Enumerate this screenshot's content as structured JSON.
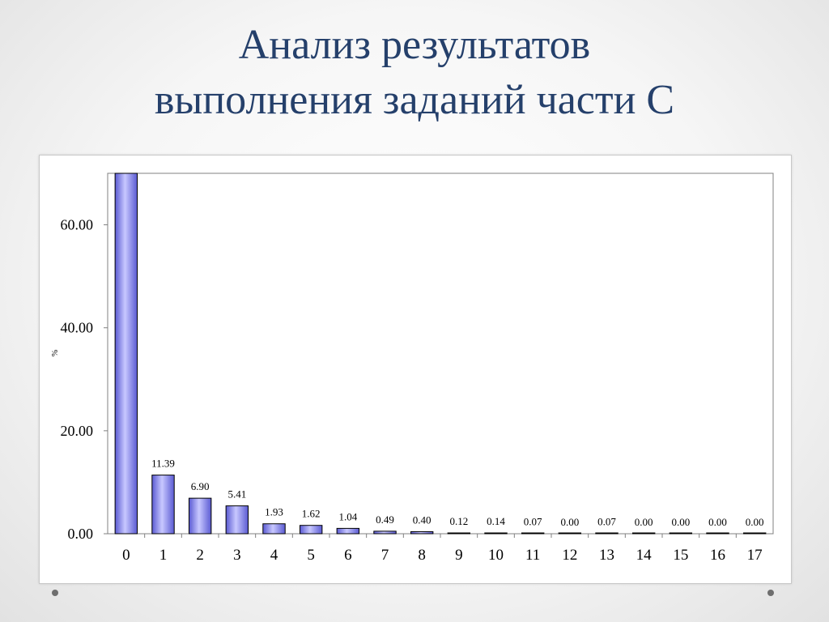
{
  "slide": {
    "title_line1": "Анализ результатов",
    "title_line2": "выполнения заданий части С"
  },
  "chart_data": {
    "type": "bar",
    "ylabel": "%",
    "xlabel": "",
    "ylim": [
      0,
      70
    ],
    "yticks": [
      "0.00",
      "20.00",
      "40.00",
      "60.00"
    ],
    "ytick_values": [
      0,
      20,
      40,
      60
    ],
    "categories": [
      "0",
      "1",
      "2",
      "3",
      "4",
      "5",
      "6",
      "7",
      "8",
      "9",
      "10",
      "11",
      "12",
      "13",
      "14",
      "15",
      "16",
      "17"
    ],
    "values": [
      70.42,
      11.39,
      6.9,
      5.41,
      1.93,
      1.62,
      1.04,
      0.49,
      0.4,
      0.12,
      0.14,
      0.07,
      0.0,
      0.07,
      0.0,
      0.0,
      0.0,
      0.0
    ],
    "data_labels": [
      "",
      "11.39",
      "6.90",
      "5.41",
      "1.93",
      "1.62",
      "1.04",
      "0.49",
      "0.40",
      "0.12",
      "0.14",
      "0.07",
      "0.00",
      "0.07",
      "0.00",
      "0.00",
      "0.00",
      "0.00"
    ],
    "bar_color_light": "#c8c8ff",
    "bar_color_dark": "#5a5ad2",
    "grid": false,
    "legend": "none"
  }
}
